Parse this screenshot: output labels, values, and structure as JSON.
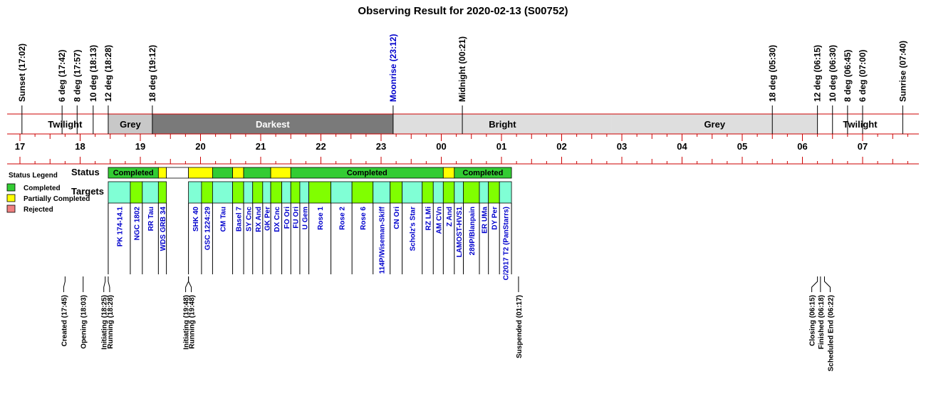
{
  "chart_data": {
    "type": "timeline",
    "title": "Observing Result for 2020-02-13 (S00752)",
    "sky_events": [
      {
        "label": "Sunset (17:02)",
        "time": "17:02",
        "color": "#000000"
      },
      {
        "label": "6 deg (17:42)",
        "time": "17:42",
        "color": "#000000"
      },
      {
        "label": "8 deg (17:57)",
        "time": "17:57",
        "color": "#000000"
      },
      {
        "label": "10 deg (18:13)",
        "time": "18:13",
        "color": "#000000"
      },
      {
        "label": "12 deg (18:28)",
        "time": "18:28",
        "color": "#000000"
      },
      {
        "label": "18 deg (19:12)",
        "time": "19:12",
        "color": "#000000"
      },
      {
        "label": "Moonrise (23:12)",
        "time": "23:12",
        "color": "#0000cc"
      },
      {
        "label": "Midnight (00:21)",
        "time": "24:21",
        "color": "#000000"
      },
      {
        "label": "18 deg (05:30)",
        "time": "29:30",
        "color": "#000000"
      },
      {
        "label": "12 deg (06:15)",
        "time": "30:15",
        "color": "#000000"
      },
      {
        "label": "10 deg (06:30)",
        "time": "30:30",
        "color": "#000000"
      },
      {
        "label": "8 deg (06:45)",
        "time": "30:45",
        "color": "#000000"
      },
      {
        "label": "6 deg (07:00)",
        "time": "31:00",
        "color": "#000000"
      },
      {
        "label": "Sunrise (07:40)",
        "time": "31:40",
        "color": "#000000"
      }
    ],
    "sky_bands": [
      {
        "label": "Twilight",
        "start": "17:02",
        "end": "18:28",
        "fill": "#ffffff",
        "text_color": "#000000"
      },
      {
        "label": "Grey",
        "start": "18:28",
        "end": "19:12",
        "fill": "#c8c8c8",
        "text_color": "#000000"
      },
      {
        "label": "Darkest",
        "start": "19:12",
        "end": "23:12",
        "fill": "#7a7a7a",
        "text_color": "#ffffff"
      },
      {
        "label": "Bright",
        "start": "23:12",
        "end": "26:50",
        "fill": "#dedede",
        "text_color": "#000000"
      },
      {
        "label": "Grey",
        "start": "26:50",
        "end": "30:15",
        "fill": "#dedede",
        "text_color": "#000000"
      },
      {
        "label": "Twilight",
        "start": "30:15",
        "end": "31:40",
        "fill": "#ffffff",
        "text_color": "#000000"
      }
    ],
    "hour_ticks": [
      "17",
      "18",
      "19",
      "20",
      "21",
      "22",
      "23",
      "00",
      "01",
      "02",
      "03",
      "04",
      "05",
      "06",
      "07"
    ],
    "axis_range": [
      "17:00",
      "31:45"
    ],
    "status_row_label": "Status",
    "targets_row_label": "Targets",
    "status_segments": [
      {
        "start": "18:28",
        "end": "19:18",
        "status": "completed",
        "label": "Completed"
      },
      {
        "start": "19:18",
        "end": "19:26",
        "status": "partial",
        "label": ""
      },
      {
        "start": "19:26",
        "end": "19:48",
        "status": "none",
        "label": ""
      },
      {
        "start": "19:48",
        "end": "20:12",
        "status": "partial",
        "label": ""
      },
      {
        "start": "20:12",
        "end": "20:32",
        "status": "completed",
        "label": ""
      },
      {
        "start": "20:32",
        "end": "20:43",
        "status": "partial",
        "label": ""
      },
      {
        "start": "20:43",
        "end": "21:10",
        "status": "completed",
        "label": ""
      },
      {
        "start": "21:10",
        "end": "21:30",
        "status": "partial",
        "label": ""
      },
      {
        "start": "21:30",
        "end": "24:02",
        "status": "completed",
        "label": "Completed"
      },
      {
        "start": "24:02",
        "end": "24:13",
        "status": "partial",
        "label": ""
      },
      {
        "start": "24:13",
        "end": "25:10",
        "status": "completed",
        "label": "Completed"
      }
    ],
    "targets": [
      {
        "name": "PK 174-14.1",
        "start": "18:28",
        "end": "18:50",
        "fill": "#80ffd5"
      },
      {
        "name": "NGC 1802",
        "start": "18:50",
        "end": "19:02",
        "fill": "#80ff00"
      },
      {
        "name": "RR Tau",
        "start": "19:02",
        "end": "19:18",
        "fill": "#80ffd5"
      },
      {
        "name": "WDS GRB 34",
        "start": "19:18",
        "end": "19:26",
        "fill": "#80ff00"
      },
      {
        "name": "SHK 40",
        "start": "19:48",
        "end": "20:01",
        "fill": "#80ffd5"
      },
      {
        "name": "GSC 1224:29",
        "start": "20:01",
        "end": "20:12",
        "fill": "#80ff00"
      },
      {
        "name": "CM Tau",
        "start": "20:12",
        "end": "20:32",
        "fill": "#80ffd5"
      },
      {
        "name": "Basel 7",
        "start": "20:32",
        "end": "20:43",
        "fill": "#80ff00"
      },
      {
        "name": "SY Cnc",
        "start": "20:43",
        "end": "20:52",
        "fill": "#80ffd5"
      },
      {
        "name": "RX And",
        "start": "20:52",
        "end": "21:02",
        "fill": "#80ff00"
      },
      {
        "name": "GK Per",
        "start": "21:02",
        "end": "21:10",
        "fill": "#80ffd5"
      },
      {
        "name": "DX Cnc",
        "start": "21:10",
        "end": "21:21",
        "fill": "#80ff00"
      },
      {
        "name": "FO Ori",
        "start": "21:21",
        "end": "21:30",
        "fill": "#80ffd5"
      },
      {
        "name": "FU Ori",
        "start": "21:30",
        "end": "21:39",
        "fill": "#80ff00"
      },
      {
        "name": "U Gem",
        "start": "21:39",
        "end": "21:48",
        "fill": "#80ffd5"
      },
      {
        "name": "Rose 1",
        "start": "21:48",
        "end": "22:10",
        "fill": "#80ff00"
      },
      {
        "name": "Rose 2",
        "start": "22:10",
        "end": "22:31",
        "fill": "#80ffd5"
      },
      {
        "name": "Rose 6",
        "start": "22:31",
        "end": "22:52",
        "fill": "#80ff00"
      },
      {
        "name": "114P/Wiseman-Skiff",
        "start": "22:52",
        "end": "23:09",
        "fill": "#80ffd5"
      },
      {
        "name": "CN Ori",
        "start": "23:09",
        "end": "23:21",
        "fill": "#80ff00"
      },
      {
        "name": "Scholz's Star",
        "start": "23:21",
        "end": "23:41",
        "fill": "#80ffd5"
      },
      {
        "name": "RZ LMi",
        "start": "23:41",
        "end": "23:52",
        "fill": "#80ff00"
      },
      {
        "name": "AM CVn",
        "start": "23:52",
        "end": "24:02",
        "fill": "#80ffd5"
      },
      {
        "name": "Z And",
        "start": "24:02",
        "end": "24:13",
        "fill": "#80ff00"
      },
      {
        "name": "LAMOST-HVS1",
        "start": "24:13",
        "end": "24:22",
        "fill": "#80ffd5"
      },
      {
        "name": "289P/Blanpain",
        "start": "24:22",
        "end": "24:38",
        "fill": "#80ff00"
      },
      {
        "name": "ER UMa",
        "start": "24:38",
        "end": "24:47",
        "fill": "#80ffd5"
      },
      {
        "name": "DY Per",
        "start": "24:47",
        "end": "24:58",
        "fill": "#80ff00"
      },
      {
        "name": "C/2017 T2 (PanStarrs)",
        "start": "24:58",
        "end": "25:10",
        "fill": "#80ffd5"
      }
    ],
    "legend": {
      "title": "Status Legend",
      "items": [
        {
          "label": "Completed",
          "color": "#33cc33"
        },
        {
          "label": "Partially Completed",
          "color": "#ffff00"
        },
        {
          "label": "Rejected",
          "color": "#f08080"
        }
      ]
    },
    "run_events": [
      {
        "label": "Created (17:45)",
        "time": "17:45",
        "color": "#000000"
      },
      {
        "label": "Opening (18:03)",
        "time": "18:03",
        "color": "#000000"
      },
      {
        "label": "Initiating (18:25)",
        "time": "18:25",
        "color": "#000000"
      },
      {
        "label": "Running (18:28)",
        "time": "18:28",
        "color": "#000000"
      },
      {
        "label": "Initiating (19:48)",
        "time": "19:48",
        "color": "#000000"
      },
      {
        "label": "Running (19:48)",
        "time": "19:48",
        "color": "#000000"
      },
      {
        "label": "Suspended (01:17)",
        "time": "25:17",
        "color": "#e69020"
      },
      {
        "label": "Closing (06:15)",
        "time": "30:15",
        "color": "#000000"
      },
      {
        "label": "Finished (06:18)",
        "time": "30:18",
        "color": "#000000"
      },
      {
        "label": "Scheduled End (06:22)",
        "time": "30:22",
        "color": "#000000"
      }
    ],
    "colors": {
      "completed": "#33cc33",
      "partial": "#ffff00",
      "none": "#ffffff",
      "axis": "#cc0000"
    }
  }
}
